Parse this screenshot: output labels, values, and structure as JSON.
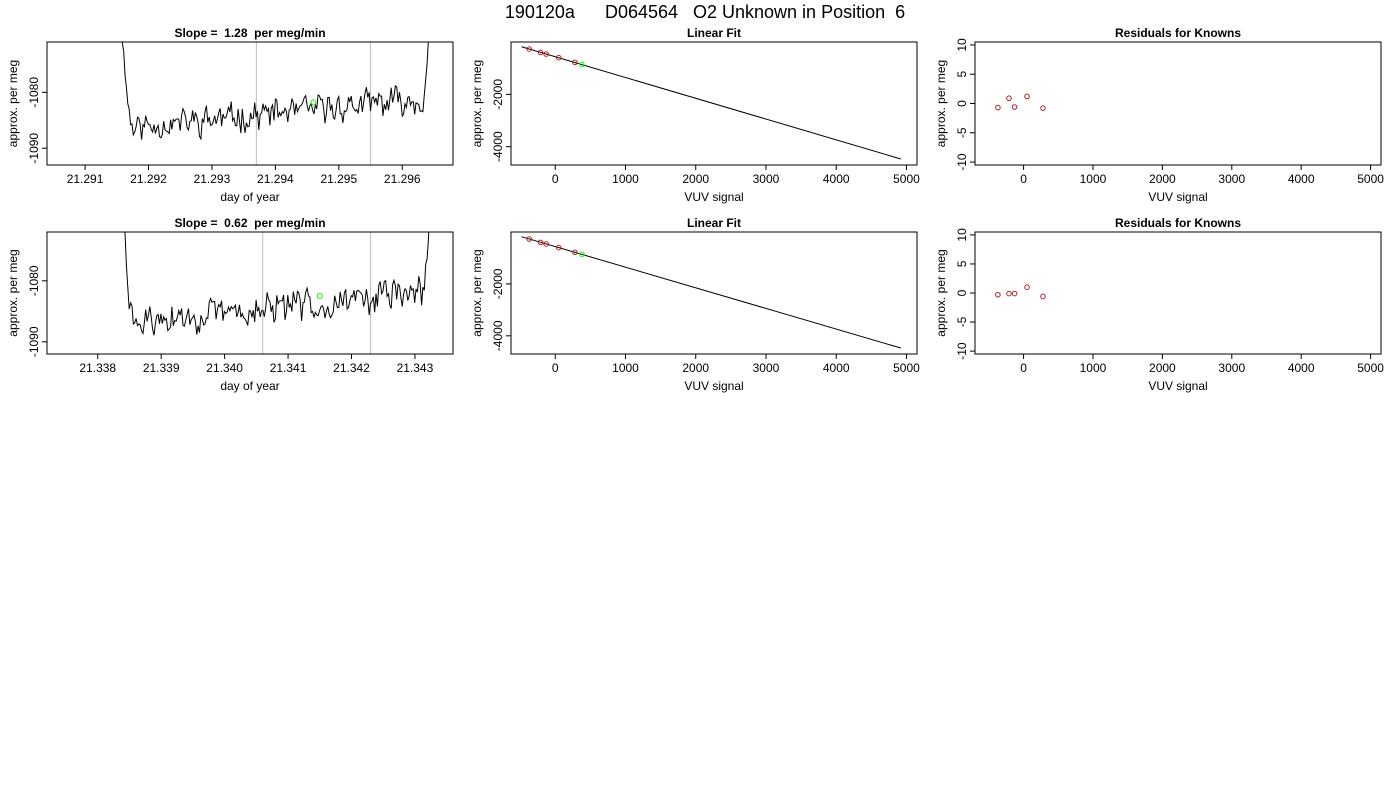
{
  "page_title": "190120a      D064564   O2 Unknown in Position  6",
  "colors": {
    "trace": "#000000",
    "marker": "#00ff00",
    "known_points": "#b22222",
    "vlines": "#bebebe"
  },
  "chart_data": [
    {
      "id": "trace1",
      "type": "line",
      "title": "Slope =  1.28  per meg/min",
      "xlabel": "day of year",
      "ylabel": "approx. per meg",
      "xlim": [
        21.2904,
        21.2968
      ],
      "ylim": [
        -1093.0,
        -1071.0
      ],
      "xticks": [
        21.291,
        21.292,
        21.293,
        21.294,
        21.295,
        21.296
      ],
      "xtick_labels": [
        "21.291",
        "21.292",
        "21.293",
        "21.294",
        "21.295",
        "21.296"
      ],
      "yticks": [
        -1090,
        -1080
      ],
      "ytick_labels": [
        "-1090",
        "-1080"
      ],
      "vlines": [
        21.2937,
        21.2955
      ],
      "x_range": [
        21.2915,
        21.2965
      ],
      "drop_left": 0.00028,
      "drop_right": 0.00018,
      "base_start": -1086.5,
      "base_end": -1081.0,
      "marker": {
        "x": 21.2946,
        "y": -1081.8
      },
      "seed": 11
    },
    {
      "id": "fit1",
      "type": "scatter+line",
      "title": "Linear Fit",
      "xlabel": "VUV signal",
      "ylabel": "approx. per meg",
      "xlim": [
        -630,
        5150
      ],
      "ylim": [
        -4700,
        0
      ],
      "xticks": [
        0,
        1000,
        2000,
        3000,
        4000,
        5000
      ],
      "xtick_labels": [
        "0",
        "1000",
        "2000",
        "3000",
        "4000",
        "5000"
      ],
      "yticks": [
        -4000,
        -2000
      ],
      "ytick_labels": [
        "-4000",
        "-2000"
      ],
      "line": {
        "x": [
          -480,
          4920
        ],
        "y": [
          -180,
          -4470
        ]
      },
      "points": {
        "x": [
          -370,
          -210,
          -130,
          50,
          280
        ],
        "y": [
          -270,
          -400,
          -460,
          -600,
          -780
        ]
      },
      "unknown": {
        "x": 380,
        "y": -860
      }
    },
    {
      "id": "res1",
      "type": "scatter",
      "title": "Residuals for Knowns",
      "xlabel": "VUV signal",
      "ylabel": "approx. per meg",
      "xlim": [
        -700,
        5150
      ],
      "ylim": [
        -10.5,
        10.5
      ],
      "xticks": [
        0,
        1000,
        2000,
        3000,
        4000,
        5000
      ],
      "xtick_labels": [
        "0",
        "1000",
        "2000",
        "3000",
        "4000",
        "5000"
      ],
      "yticks": [
        -10,
        -5,
        0,
        5,
        10
      ],
      "ytick_labels": [
        "-10",
        "-5",
        "0",
        "5",
        "10"
      ],
      "points": {
        "x": [
          -370,
          -210,
          -130,
          50,
          280
        ],
        "y": [
          -0.7,
          0.9,
          -0.6,
          1.2,
          -0.8
        ]
      }
    },
    {
      "id": "trace2",
      "type": "line",
      "title": "Slope =  0.62  per meg/min",
      "xlabel": "day of year",
      "ylabel": "approx. per meg",
      "xlim": [
        21.3372,
        21.3436
      ],
      "ylim": [
        -1092.0,
        -1072.0
      ],
      "xticks": [
        21.338,
        21.339,
        21.34,
        21.341,
        21.342,
        21.343
      ],
      "xtick_labels": [
        "21.338",
        "21.339",
        "21.340",
        "21.341",
        "21.342",
        "21.343"
      ],
      "yticks": [
        -1090,
        -1080
      ],
      "ytick_labels": [
        "-1090",
        "-1080"
      ],
      "vlines": [
        21.3406,
        21.3423
      ],
      "x_range": [
        21.3383,
        21.3433
      ],
      "drop_left": 0.00032,
      "drop_right": 0.00018,
      "base_start": -1087.5,
      "base_end": -1081.5,
      "marker": {
        "x": 21.3415,
        "y": -1082.5
      },
      "seed": 29
    },
    {
      "id": "fit2",
      "type": "scatter+line",
      "title": "Linear Fit",
      "xlabel": "VUV signal",
      "ylabel": "approx. per meg",
      "xlim": [
        -630,
        5150
      ],
      "ylim": [
        -4700,
        0
      ],
      "xticks": [
        0,
        1000,
        2000,
        3000,
        4000,
        5000
      ],
      "xtick_labels": [
        "0",
        "1000",
        "2000",
        "3000",
        "4000",
        "5000"
      ],
      "yticks": [
        -4000,
        -2000
      ],
      "ytick_labels": [
        "-4000",
        "-2000"
      ],
      "line": {
        "x": [
          -480,
          4920
        ],
        "y": [
          -180,
          -4470
        ]
      },
      "points": {
        "x": [
          -370,
          -210,
          -130,
          50,
          280
        ],
        "y": [
          -270,
          -400,
          -460,
          -600,
          -780
        ]
      },
      "unknown": {
        "x": 380,
        "y": -860
      }
    },
    {
      "id": "res2",
      "type": "scatter",
      "title": "Residuals for Knowns",
      "xlabel": "VUV signal",
      "ylabel": "approx. per meg",
      "xlim": [
        -700,
        5150
      ],
      "ylim": [
        -10.5,
        10.5
      ],
      "xticks": [
        0,
        1000,
        2000,
        3000,
        4000,
        5000
      ],
      "xtick_labels": [
        "0",
        "1000",
        "2000",
        "3000",
        "4000",
        "5000"
      ],
      "yticks": [
        -10,
        -5,
        0,
        5,
        10
      ],
      "ytick_labels": [
        "-10",
        "-5",
        "0",
        "5",
        "10"
      ],
      "points": {
        "x": [
          -370,
          -210,
          -130,
          50,
          280
        ],
        "y": [
          -0.3,
          -0.1,
          -0.1,
          1.0,
          -0.6
        ]
      }
    }
  ]
}
